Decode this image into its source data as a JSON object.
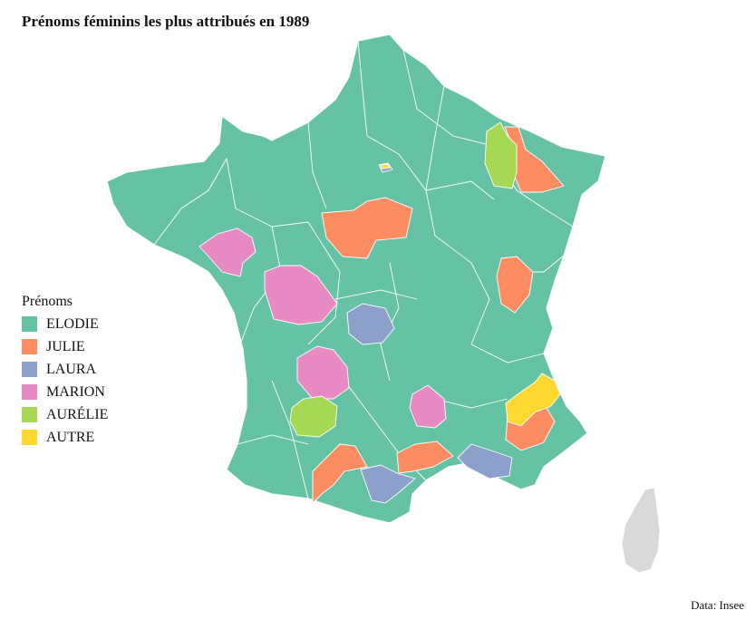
{
  "title": "Prénoms féminins les plus attribués en 1989",
  "legend": {
    "title": "Prénoms",
    "items": [
      {
        "label": "ELODIE",
        "color": "#66c2a5"
      },
      {
        "label": "JULIE",
        "color": "#fc8d62"
      },
      {
        "label": "LAURA",
        "color": "#8da0cb"
      },
      {
        "label": "MARION",
        "color": "#e78ac3"
      },
      {
        "label": "AURÉLIE",
        "color": "#a6d854"
      },
      {
        "label": "AUTRE",
        "color": "#ffd92f"
      }
    ]
  },
  "corsica_color": "#d9d9d9",
  "border_color": "#ffffff",
  "source": "Data: Insee"
}
